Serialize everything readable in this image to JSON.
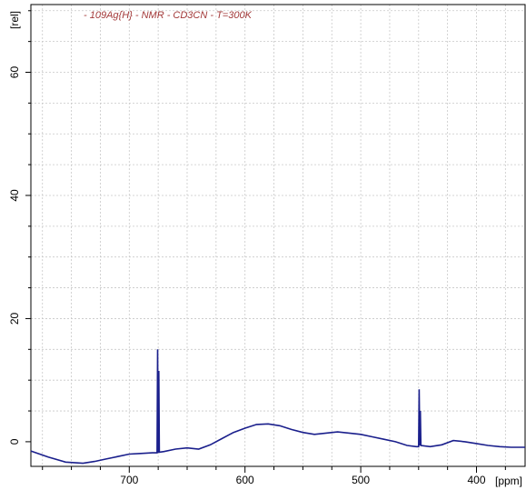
{
  "chart_data": {
    "type": "line",
    "title": "- 109Ag{H} - NMR - CD3CN - T=300K",
    "xlabel": "[ppm]",
    "ylabel": "[rel]",
    "xlim": [
      785,
      358
    ],
    "ylim": [
      -4,
      71
    ],
    "xticks": [
      700,
      600,
      500,
      400
    ],
    "yticks": [
      0,
      20,
      40,
      60
    ],
    "x_reversed": true,
    "grid": true,
    "colors": {
      "line": "#1a1f8c"
    },
    "series": [
      {
        "x": [
          785,
          770,
          755,
          740,
          730,
          720,
          710,
          700,
          690,
          680,
          676,
          675.5,
          675,
          674.5,
          674,
          670,
          660,
          650,
          640,
          630,
          620,
          610,
          600,
          590,
          580,
          570,
          560,
          550,
          540,
          530,
          520,
          510,
          500,
          490,
          480,
          470,
          460,
          452,
          450,
          449.5,
          449,
          448.5,
          448,
          440,
          430,
          420,
          410,
          400,
          390,
          380,
          370,
          358
        ],
        "y": [
          -1.5,
          -2.5,
          -3.3,
          -3.5,
          -3.2,
          -2.8,
          -2.4,
          -2.0,
          -1.9,
          -1.8,
          -1.8,
          15,
          -1.8,
          11.5,
          -1.7,
          -1.6,
          -1.2,
          -1.0,
          -1.2,
          -0.5,
          0.5,
          1.5,
          2.2,
          2.8,
          2.9,
          2.6,
          2.0,
          1.5,
          1.2,
          1.4,
          1.6,
          1.4,
          1.2,
          0.8,
          0.4,
          0.0,
          -0.6,
          -0.8,
          -0.8,
          8.5,
          -0.6,
          5.0,
          -0.6,
          -0.8,
          -0.5,
          0.2,
          0.0,
          -0.3,
          -0.6,
          -0.8,
          -0.9,
          -0.9
        ]
      }
    ]
  }
}
